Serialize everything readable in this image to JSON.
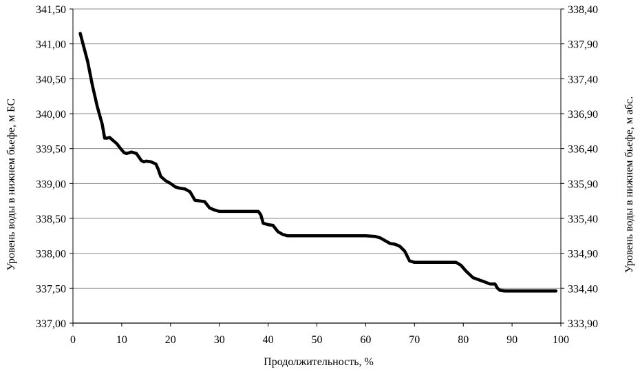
{
  "chart_data": {
    "type": "line",
    "xlabel": "Продолжительность, %",
    "ylabel_left": "Уровень воды в нижнем бьефе, м БС",
    "ylabel_right": "Уровень воды в нижнем бьефе, м абс.",
    "xlim": [
      0,
      100
    ],
    "ylim_left": [
      337.0,
      341.5
    ],
    "ylim_right": [
      333.9,
      338.4
    ],
    "grid": true,
    "legend": "none",
    "line_color": "#000000",
    "x_ticks": [
      "0",
      "10",
      "20",
      "30",
      "40",
      "50",
      "60",
      "70",
      "80",
      "90",
      "100"
    ],
    "y_ticks_left": [
      "337,00",
      "337,50",
      "338,00",
      "338,50",
      "339,00",
      "339,50",
      "340,00",
      "340,50",
      "341,00",
      "341,50"
    ],
    "y_ticks_right": [
      "333,90",
      "334,40",
      "334,90",
      "335,40",
      "335,90",
      "336,40",
      "336,90",
      "337,40",
      "337,90",
      "338,40"
    ],
    "series": [
      {
        "x": [
          1.5,
          3.0,
          4.0,
          5.0,
          6.0,
          6.5,
          7.0,
          7.5,
          8.0,
          9.0,
          10.0,
          10.5,
          11.0,
          12.0,
          13.0,
          14.0,
          14.5,
          15.0,
          16.0,
          17.0,
          17.5,
          18.0,
          19.0,
          20.0,
          21.0,
          22.0,
          23.0,
          24.0,
          25.0,
          26.0,
          27.0,
          28.0,
          29.0,
          30.0,
          31.0,
          33.0,
          35.0,
          37.0,
          38.0,
          38.5,
          39.0,
          40.0,
          41.0,
          42.0,
          43.0,
          44.0,
          45.0,
          47.0,
          50.0,
          55.0,
          60.0,
          62.0,
          63.0,
          64.0,
          65.0,
          66.0,
          67.0,
          68.0,
          69.0,
          70.0,
          71.0,
          73.0,
          75.0,
          77.0,
          78.5,
          79.5,
          80.5,
          82.0,
          84.0,
          85.5,
          86.5,
          87.0,
          87.5,
          88.5,
          90.0,
          95.0,
          99.0
        ],
        "y": [
          341.15,
          340.75,
          340.4,
          340.1,
          339.85,
          339.65,
          339.65,
          339.66,
          339.63,
          339.57,
          339.48,
          339.44,
          339.43,
          339.45,
          339.43,
          339.33,
          339.31,
          339.32,
          339.31,
          339.28,
          339.2,
          339.1,
          339.04,
          339.0,
          338.95,
          338.93,
          338.92,
          338.88,
          338.76,
          338.75,
          338.74,
          338.65,
          338.62,
          338.6,
          338.6,
          338.6,
          338.6,
          338.6,
          338.6,
          338.55,
          338.43,
          338.41,
          338.4,
          338.31,
          338.27,
          338.25,
          338.25,
          338.25,
          338.25,
          338.25,
          338.25,
          338.24,
          338.22,
          338.18,
          338.14,
          338.13,
          338.1,
          338.03,
          337.89,
          337.87,
          337.87,
          337.87,
          337.87,
          337.87,
          337.87,
          337.83,
          337.75,
          337.65,
          337.6,
          337.56,
          337.56,
          337.5,
          337.47,
          337.46,
          337.46,
          337.46,
          337.46
        ]
      }
    ]
  }
}
